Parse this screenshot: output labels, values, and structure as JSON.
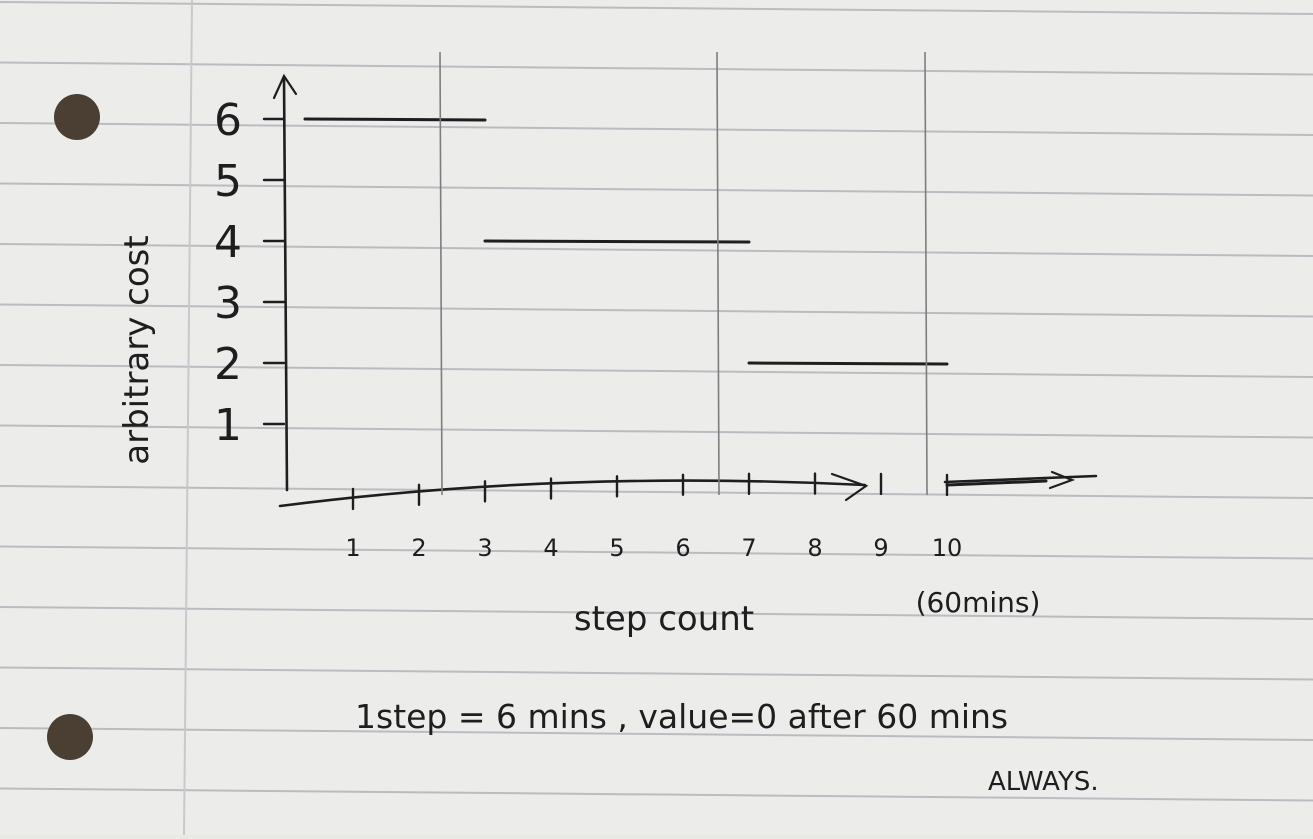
{
  "paper": {
    "rule_color": "#b9bcc0",
    "margin_color": "#c9c9c9",
    "ink_color": "#1e1e1e",
    "hole_color": "#4a3f32"
  },
  "chart_data": {
    "type": "line",
    "step": true,
    "xlabel": "step count",
    "ylabel": "arbitrary cost",
    "x_ticks": [
      "1",
      "2",
      "3",
      "4",
      "5",
      "6",
      "7",
      "8",
      "9",
      "10"
    ],
    "x_end_note": "(60mins)",
    "y_ticks": [
      "1",
      "2",
      "3",
      "4",
      "5",
      "6"
    ],
    "xlim": [
      0,
      11.5
    ],
    "ylim": [
      0,
      6.6
    ],
    "segments": [
      {
        "x0": 0,
        "x1": 3,
        "y": 6
      },
      {
        "x0": 3,
        "x1": 7,
        "y": 4
      },
      {
        "x0": 7,
        "x1": 10,
        "y": 2
      },
      {
        "x0": 10,
        "x1": 11.5,
        "y": 0
      }
    ],
    "grid": false,
    "legend": "none"
  },
  "notes": {
    "line1": "1step = 6 mins ,   value=0 after 60 mins",
    "line2": "ALWAYS."
  }
}
